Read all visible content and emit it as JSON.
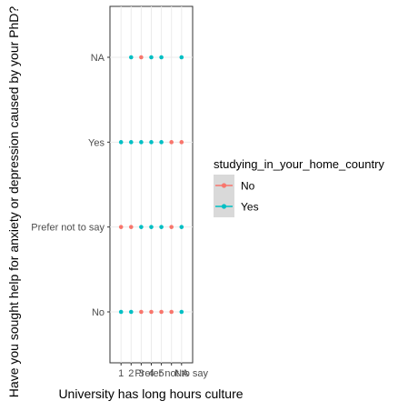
{
  "chart_data": {
    "type": "scatter",
    "title": "",
    "xlabel": "University has long hours culture",
    "ylabel": "Have you sought help for anxiety or depression caused by your PhD?",
    "x_categories": [
      "1",
      "2",
      "3",
      "4",
      "5",
      "Prefer not to say",
      "NA"
    ],
    "y_categories": [
      "No",
      "Prefer not to say",
      "Yes",
      "NA"
    ],
    "grid": true,
    "legend_position": "right",
    "legend_title": "studying_in_your_home_country",
    "series": [
      {
        "name": "No",
        "color": "#F8766D",
        "points": [
          {
            "x": "3",
            "y": "NA"
          },
          {
            "x": "Prefer not to say",
            "y": "Yes"
          },
          {
            "x": "NA",
            "y": "Yes"
          },
          {
            "x": "1",
            "y": "Prefer not to say"
          },
          {
            "x": "2",
            "y": "Prefer not to say"
          },
          {
            "x": "Prefer not to say",
            "y": "Prefer not to say"
          },
          {
            "x": "3",
            "y": "No"
          },
          {
            "x": "4",
            "y": "No"
          },
          {
            "x": "5",
            "y": "No"
          },
          {
            "x": "Prefer not to say",
            "y": "No"
          }
        ]
      },
      {
        "name": "Yes",
        "color": "#00BFC4",
        "points": [
          {
            "x": "2",
            "y": "NA"
          },
          {
            "x": "4",
            "y": "NA"
          },
          {
            "x": "5",
            "y": "NA"
          },
          {
            "x": "NA",
            "y": "NA"
          },
          {
            "x": "1",
            "y": "Yes"
          },
          {
            "x": "2",
            "y": "Yes"
          },
          {
            "x": "3",
            "y": "Yes"
          },
          {
            "x": "4",
            "y": "Yes"
          },
          {
            "x": "5",
            "y": "Yes"
          },
          {
            "x": "3",
            "y": "Prefer not to say"
          },
          {
            "x": "4",
            "y": "Prefer not to say"
          },
          {
            "x": "5",
            "y": "Prefer not to say"
          },
          {
            "x": "NA",
            "y": "Prefer not to say"
          },
          {
            "x": "1",
            "y": "No"
          },
          {
            "x": "2",
            "y": "No"
          },
          {
            "x": "NA",
            "y": "No"
          }
        ]
      }
    ]
  }
}
